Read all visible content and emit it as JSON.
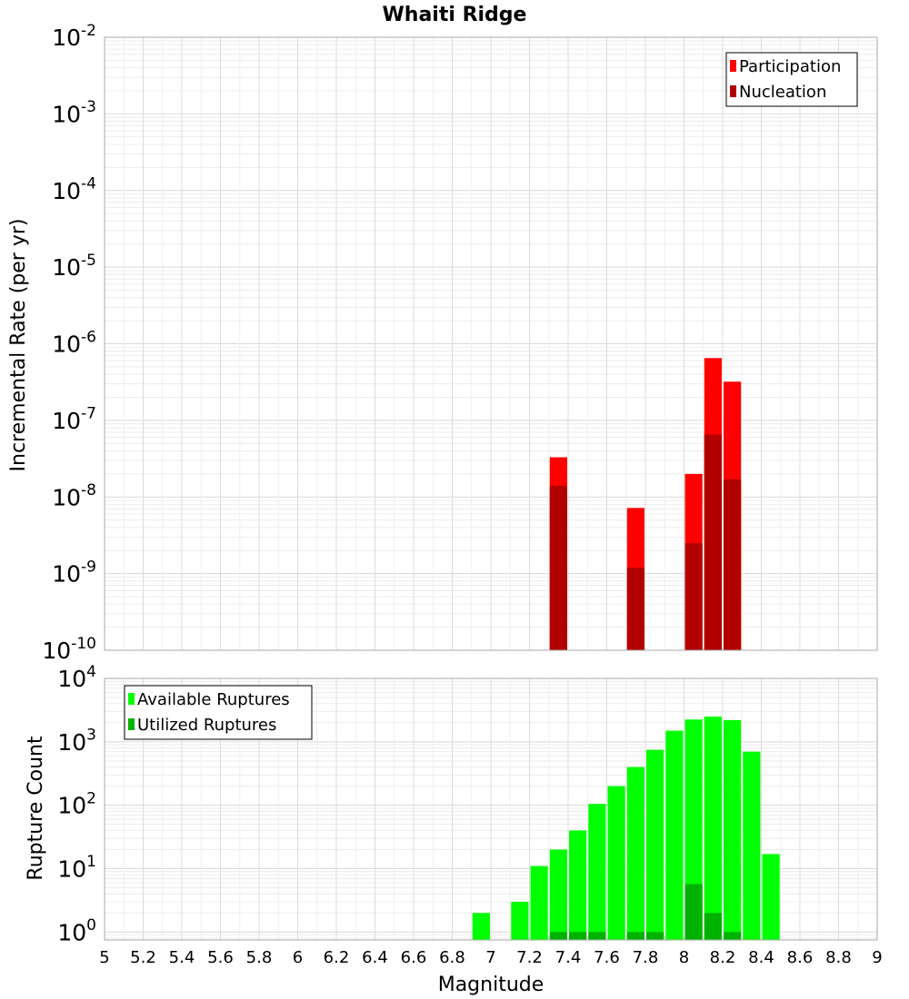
{
  "chart_data": [
    {
      "type": "bar",
      "title": "Whaiti Ridge",
      "xlabel": "",
      "ylabel": "Incremental Rate (per yr)",
      "yscale": "log",
      "ylim": [
        1e-10,
        0.01
      ],
      "xlim": [
        5,
        9
      ],
      "grid": true,
      "legend_position": "top-right",
      "series": [
        {
          "name": "Participation",
          "color": "#ff0000",
          "points": [
            {
              "x": 7.35,
              "y": 3.3e-08
            },
            {
              "x": 7.75,
              "y": 7.2e-09
            },
            {
              "x": 8.05,
              "y": 2e-08
            },
            {
              "x": 8.15,
              "y": 6.5e-07
            },
            {
              "x": 8.25,
              "y": 3.2e-07
            }
          ]
        },
        {
          "name": "Nucleation",
          "color": "#b20000",
          "points": [
            {
              "x": 7.35,
              "y": 1.4e-08
            },
            {
              "x": 7.75,
              "y": 1.2e-09
            },
            {
              "x": 8.05,
              "y": 2.5e-09
            },
            {
              "x": 8.15,
              "y": 6.5e-08
            },
            {
              "x": 8.25,
              "y": 1.7e-08
            }
          ]
        }
      ]
    },
    {
      "type": "bar",
      "title": "",
      "xlabel": "Magnitude",
      "ylabel": "Rupture Count",
      "yscale": "log",
      "ylim": [
        0.75,
        10000
      ],
      "xlim": [
        5,
        9
      ],
      "grid": true,
      "legend_position": "top-left",
      "x_tick_labels": [
        "5",
        "5.2",
        "5.4",
        "5.6",
        "5.8",
        "6",
        "6.2",
        "6.4",
        "6.6",
        "6.8",
        "7",
        "7.2",
        "7.4",
        "7.6",
        "7.8",
        "8",
        "8.2",
        "8.4",
        "8.6",
        "8.8",
        "9"
      ],
      "series": [
        {
          "name": "Available Ruptures",
          "color": "#00ff00",
          "points": [
            {
              "x": 6.95,
              "y": 2
            },
            {
              "x": 7.15,
              "y": 3
            },
            {
              "x": 7.25,
              "y": 11
            },
            {
              "x": 7.35,
              "y": 20
            },
            {
              "x": 7.45,
              "y": 40
            },
            {
              "x": 7.55,
              "y": 105
            },
            {
              "x": 7.65,
              "y": 200
            },
            {
              "x": 7.75,
              "y": 400
            },
            {
              "x": 7.85,
              "y": 750
            },
            {
              "x": 7.95,
              "y": 1500
            },
            {
              "x": 8.05,
              "y": 2250
            },
            {
              "x": 8.15,
              "y": 2500
            },
            {
              "x": 8.25,
              "y": 2200
            },
            {
              "x": 8.35,
              "y": 700
            },
            {
              "x": 8.45,
              "y": 17
            }
          ]
        },
        {
          "name": "Utilized Ruptures",
          "color": "#00b200",
          "points": [
            {
              "x": 7.35,
              "y": 1
            },
            {
              "x": 7.45,
              "y": 1
            },
            {
              "x": 7.55,
              "y": 1
            },
            {
              "x": 7.75,
              "y": 1
            },
            {
              "x": 7.85,
              "y": 1
            },
            {
              "x": 8.05,
              "y": 5.7
            },
            {
              "x": 8.15,
              "y": 2
            },
            {
              "x": 8.25,
              "y": 1
            }
          ]
        }
      ]
    }
  ]
}
